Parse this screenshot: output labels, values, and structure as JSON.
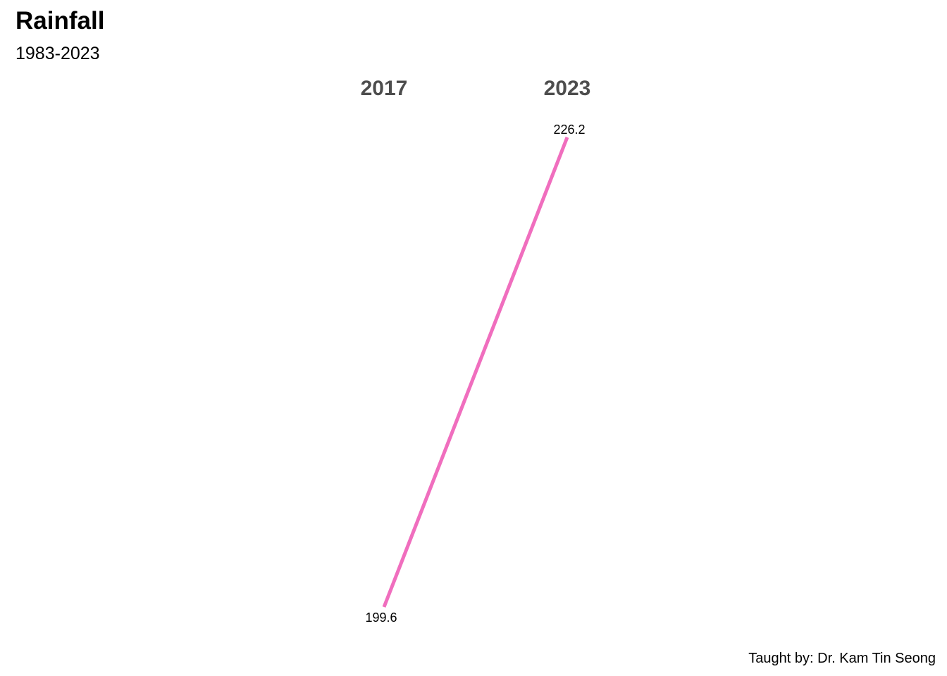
{
  "title": "Rainfall",
  "subtitle": "1983-2023",
  "caption": "Taught by: Dr. Kam Tin Seong",
  "chart_data": {
    "type": "line",
    "subtype": "slopegraph",
    "categories": [
      "2017",
      "2023"
    ],
    "series": [
      {
        "values": [
          199.6,
          226.2
        ],
        "labels": [
          "199.6",
          "226.2"
        ],
        "color": "#f06ebe"
      }
    ],
    "ylim": [
      199.6,
      226.2
    ],
    "grid": false,
    "legend": "none"
  }
}
